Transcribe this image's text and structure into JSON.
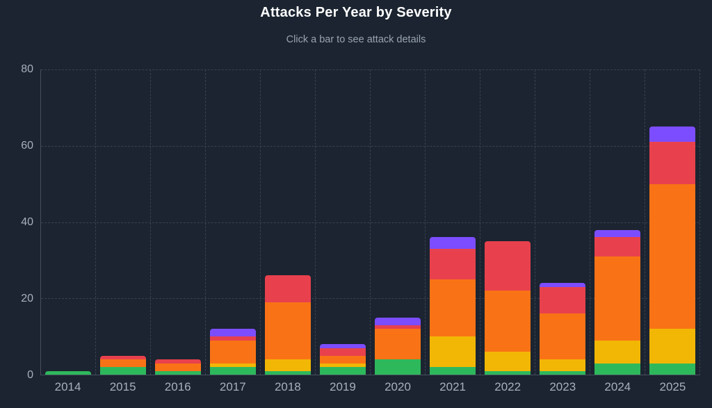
{
  "header": {
    "title": "Attacks Per Year by Severity",
    "subtitle": "Click a bar to see attack details"
  },
  "colors": {
    "background": "#1b2430",
    "title_text": "#ffffff",
    "subtitle_text": "#9aa4b0",
    "axis_label_text": "#a7b0bb",
    "gridline": "#39434f",
    "axis_line": "#46505c"
  },
  "chart_data": {
    "type": "bar",
    "stacked": true,
    "title": "Attacks Per Year by Severity",
    "xlabel": "",
    "ylabel": "",
    "ylim": [
      0,
      80
    ],
    "yticks": [
      0,
      20,
      40,
      60,
      80
    ],
    "grid": "dashed",
    "legend": "none",
    "categories": [
      "2014",
      "2015",
      "2016",
      "2017",
      "2018",
      "2019",
      "2020",
      "2021",
      "2022",
      "2023",
      "2024",
      "2025"
    ],
    "series": [
      {
        "name": "severity-green",
        "color": "#2eb85c",
        "values": [
          1,
          2,
          1,
          2,
          1,
          2,
          4,
          2,
          1,
          1,
          3,
          3
        ]
      },
      {
        "name": "severity-yellow",
        "color": "#f2b705",
        "values": [
          0,
          0,
          0,
          1,
          3,
          1,
          0,
          8,
          5,
          3,
          6,
          9
        ]
      },
      {
        "name": "severity-orange",
        "color": "#f97316",
        "values": [
          0,
          2,
          2,
          6,
          15,
          2,
          8,
          15,
          16,
          12,
          22,
          38
        ]
      },
      {
        "name": "severity-red",
        "color": "#e8414d",
        "values": [
          0,
          1,
          1,
          1,
          7,
          2,
          1,
          8,
          13,
          7,
          5,
          11
        ]
      },
      {
        "name": "severity-purple",
        "color": "#7c4dff",
        "values": [
          0,
          0,
          0,
          2,
          0,
          1,
          2,
          3,
          0,
          1,
          2,
          4
        ]
      }
    ]
  }
}
